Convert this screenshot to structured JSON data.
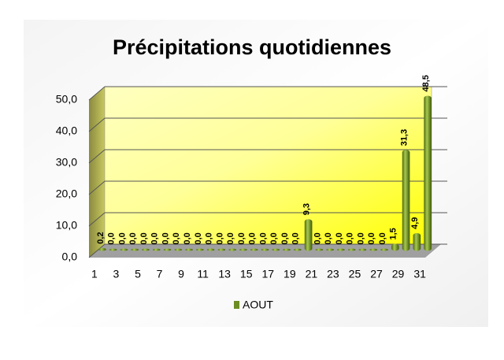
{
  "chart_data": {
    "type": "bar",
    "title": "Précipitations quotidiennes",
    "categories": [
      "1",
      null,
      "3",
      null,
      "5",
      null,
      "7",
      null,
      "9",
      null,
      "11",
      null,
      "13",
      null,
      "15",
      null,
      "17",
      null,
      "19",
      null,
      "21",
      null,
      "23",
      null,
      "25",
      null,
      "27",
      null,
      "29",
      null,
      "31"
    ],
    "series": [
      {
        "name": "AOUT",
        "color": "#6b8e23",
        "values": [
          0.2,
          0,
          0,
          0,
          0,
          0,
          0,
          0,
          0,
          0,
          0,
          0,
          0,
          0,
          0,
          0,
          0,
          0,
          0,
          9.3,
          0,
          0,
          0,
          0,
          0,
          0,
          0,
          1.5,
          31.3,
          4.9,
          48.5
        ],
        "value_labels": [
          "0,2",
          "0,0",
          "0,0",
          "0,0",
          "0,0",
          "0,0",
          "0,0",
          "0,0",
          "0,0",
          "0,0",
          "0,0",
          "0,0",
          "0,0",
          "0,0",
          "0,0",
          "0,0",
          "0,0",
          "0,0",
          "0,0",
          "9,3",
          "0,0",
          "0,0",
          "0,0",
          "0,0",
          "0,0",
          "0,0",
          "0,0",
          "1,5",
          "31,3",
          "4,9",
          "48,5"
        ]
      }
    ],
    "ylim": [
      0,
      50
    ],
    "yticks": [
      {
        "value": 0,
        "label": "0,0"
      },
      {
        "value": 10,
        "label": "10,0"
      },
      {
        "value": 20,
        "label": "20,0"
      },
      {
        "value": 30,
        "label": "30,0"
      },
      {
        "value": 40,
        "label": "40,0"
      },
      {
        "value": 50,
        "label": "50,0"
      }
    ],
    "grid": true,
    "legend": "bottom"
  }
}
